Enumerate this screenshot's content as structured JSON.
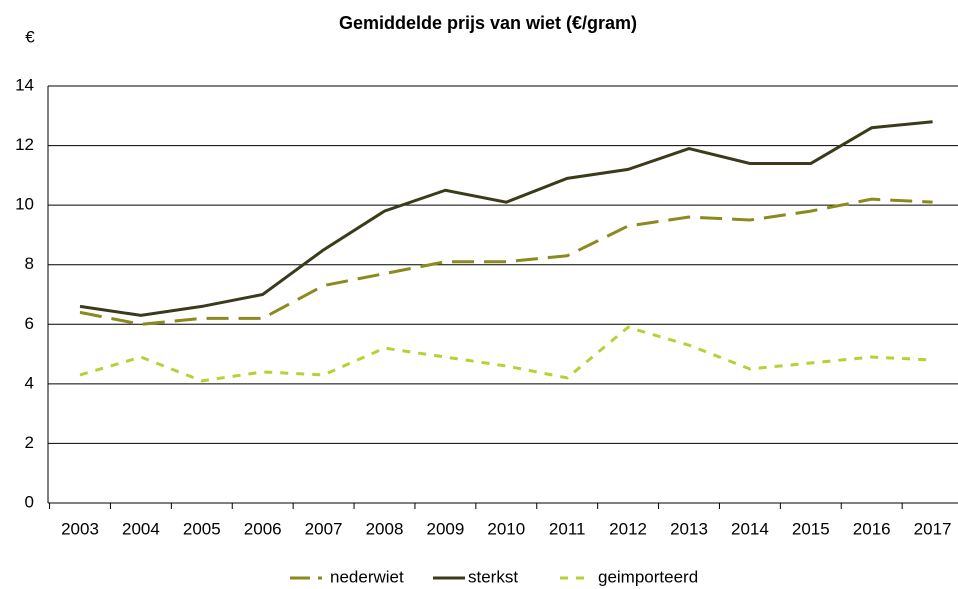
{
  "chart_data": {
    "type": "line",
    "title": "Gemiddelde prijs van wiet (€/gram)",
    "y_label": "€",
    "categories": [
      "2003",
      "2004",
      "2005",
      "2006",
      "2007",
      "2008",
      "2009",
      "2010",
      "2011",
      "2012",
      "2013",
      "2014",
      "2015",
      "2016",
      "2017"
    ],
    "series": [
      {
        "name": "nederwiet",
        "color": "#8a8a1e",
        "dash": "long",
        "values": [
          6.4,
          6.0,
          6.2,
          6.2,
          7.3,
          7.7,
          8.1,
          8.1,
          8.3,
          9.3,
          9.6,
          9.5,
          9.8,
          10.2,
          10.1
        ]
      },
      {
        "name": "sterkst",
        "color": "#3b3b1c",
        "dash": "solid",
        "values": [
          6.6,
          6.3,
          6.6,
          7.0,
          8.5,
          9.8,
          10.5,
          10.1,
          10.9,
          11.2,
          11.9,
          11.4,
          11.4,
          12.6,
          12.8
        ]
      },
      {
        "name": "geimporteerd",
        "color": "#b4d236",
        "dash": "short",
        "values": [
          4.3,
          4.9,
          4.1,
          4.4,
          4.3,
          5.2,
          4.9,
          4.6,
          4.2,
          5.9,
          5.3,
          4.5,
          4.7,
          4.9,
          4.8
        ]
      }
    ],
    "ylim": [
      0,
      14
    ],
    "yticks": [
      0,
      2,
      4,
      6,
      8,
      10,
      12,
      14
    ],
    "grid": true,
    "legend": "bottom"
  }
}
